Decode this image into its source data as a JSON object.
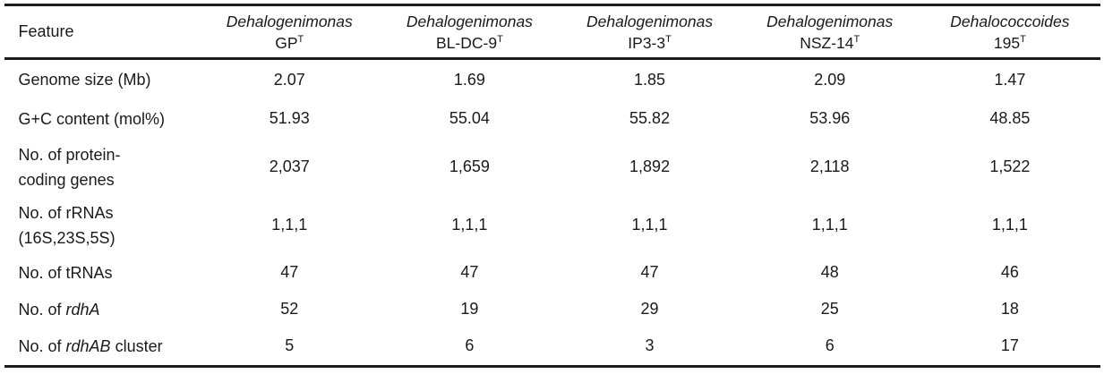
{
  "table": {
    "feature_header": "Feature",
    "columns": [
      {
        "genus": "Dehalogenimonas",
        "strain": "GP",
        "strain_sup": "T"
      },
      {
        "genus": "Dehalogenimonas",
        "strain": "BL-DC-9",
        "strain_sup": "T"
      },
      {
        "genus": "Dehalogenimonas",
        "strain": "IP3-3",
        "strain_sup": "T"
      },
      {
        "genus": "Dehalogenimonas",
        "strain": "NSZ-14",
        "strain_sup": "T"
      },
      {
        "genus": "Dehalococcoides",
        "strain": "195",
        "strain_sup": "T"
      }
    ],
    "rows": [
      {
        "feature": [
          {
            "text": "Genome size (Mb)",
            "italic": false
          }
        ],
        "feature_line2": null,
        "values": [
          "2.07",
          "1.69",
          "1.85",
          "2.09",
          "1.47"
        ]
      },
      {
        "feature": [
          {
            "text": "G+C content (mol%)",
            "italic": false
          }
        ],
        "feature_line2": null,
        "values": [
          "51.93",
          "55.04",
          "55.82",
          "53.96",
          "48.85"
        ]
      },
      {
        "feature": [
          {
            "text": "No. of protein-",
            "italic": false
          }
        ],
        "feature_line2": "coding genes",
        "values": [
          "2,037",
          "1,659",
          "1,892",
          "2,118",
          "1,522"
        ]
      },
      {
        "feature": [
          {
            "text": "No. of rRNAs",
            "italic": false
          }
        ],
        "feature_line2": "(16S,23S,5S)",
        "values": [
          "1,1,1",
          "1,1,1",
          "1,1,1",
          "1,1,1",
          "1,1,1"
        ]
      },
      {
        "feature": [
          {
            "text": "No. of tRNAs",
            "italic": false
          }
        ],
        "feature_line2": null,
        "values": [
          "47",
          "47",
          "47",
          "48",
          "46"
        ]
      },
      {
        "feature": [
          {
            "text": "No. of ",
            "italic": false
          },
          {
            "text": "rdhA",
            "italic": true
          }
        ],
        "feature_line2": null,
        "values": [
          "52",
          "19",
          "29",
          "25",
          "18"
        ]
      },
      {
        "feature": [
          {
            "text": "No. of ",
            "italic": false
          },
          {
            "text": "rdhAB",
            "italic": true
          },
          {
            "text": " cluster",
            "italic": false
          }
        ],
        "feature_line2": null,
        "values": [
          "5",
          "6",
          "3",
          "6",
          "17"
        ]
      }
    ]
  }
}
